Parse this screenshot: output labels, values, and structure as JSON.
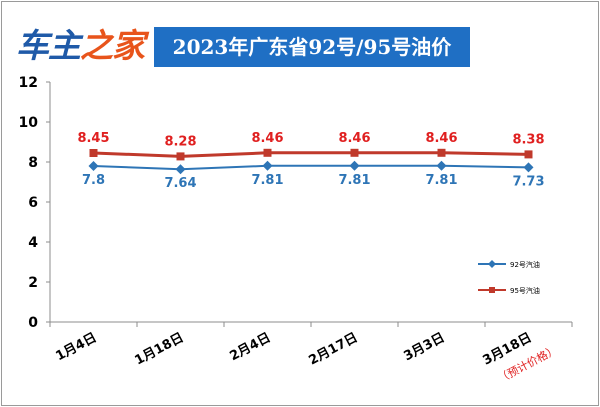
{
  "logo": {
    "part1": "车主",
    "part2": "之家"
  },
  "colors": {
    "series92": "#2e75b6",
    "series95": "#c0392b",
    "label95": "#e02020",
    "banner": "#1f6fc4",
    "note": "#e02020"
  },
  "chart_data": {
    "type": "line",
    "title": "2023年广东省92号/95号油价",
    "categories": [
      "1月4日",
      "1月18日",
      "2月4日",
      "2月17日",
      "3月3日",
      "3月18日"
    ],
    "category_note": "（预计价格）",
    "ylim": [
      0,
      12
    ],
    "yticks": [
      "0",
      "2",
      "4",
      "6",
      "8",
      "10",
      "12"
    ],
    "grid": false,
    "legend_position": "right",
    "series": [
      {
        "name": "92号汽油",
        "values": [
          7.8,
          7.64,
          7.81,
          7.81,
          7.81,
          7.73
        ],
        "labels": [
          "7.8",
          "7.64",
          "7.81",
          "7.81",
          "7.81",
          "7.73"
        ],
        "marker": "diamond"
      },
      {
        "name": "95号汽油",
        "values": [
          8.45,
          8.28,
          8.46,
          8.46,
          8.46,
          8.38
        ],
        "labels": [
          "8.45",
          "8.28",
          "8.46",
          "8.46",
          "8.46",
          "8.38"
        ],
        "marker": "square"
      }
    ]
  }
}
